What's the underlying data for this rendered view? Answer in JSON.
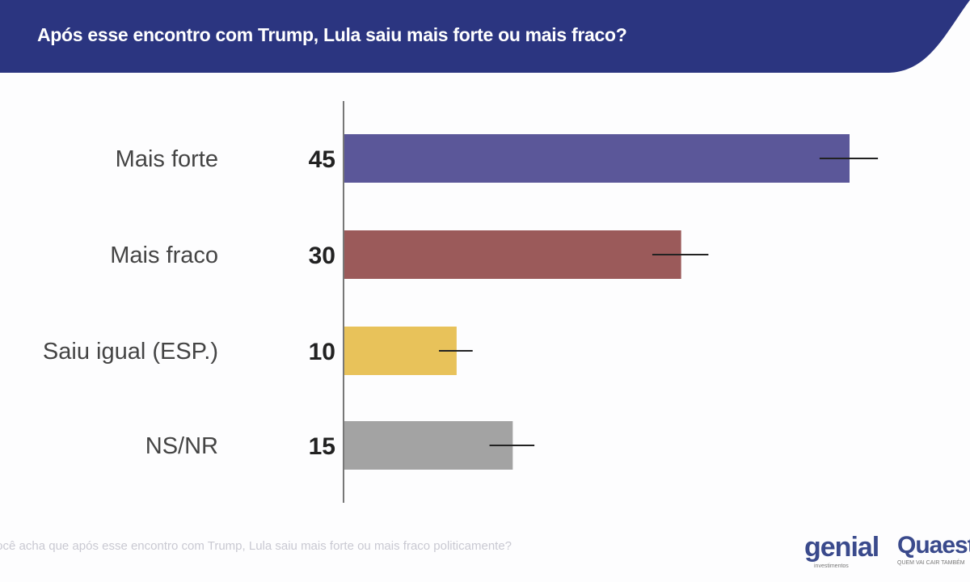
{
  "chart_data": {
    "type": "bar",
    "orientation": "horizontal",
    "title": "Após esse encontro com Trump, Lula saiu mais forte ou mais fraco?",
    "categories": [
      "Mais forte",
      "Mais fraco",
      "Saiu igual (ESP.)",
      "NS/NR"
    ],
    "values": [
      45,
      30,
      10,
      15
    ],
    "error": [
      2.6,
      2.5,
      1.5,
      2.0
    ],
    "colors": [
      "#5b5799",
      "#9b5a5a",
      "#e8c25a",
      "#a3a3a3"
    ],
    "xlim": [
      0,
      50
    ],
    "grid": false
  },
  "header": {
    "color": "#2b3580"
  },
  "footer": {
    "question": "Você acha que após esse encontro com Trump, Lula saiu mais forte ou mais fraco politicamente?",
    "logo_genial": "genial",
    "logo_genial_sub": "investimentos",
    "logo_quaest": "Quaest",
    "logo_quaest_sub": "QUEM VAI CAIR TAMBÉM"
  }
}
